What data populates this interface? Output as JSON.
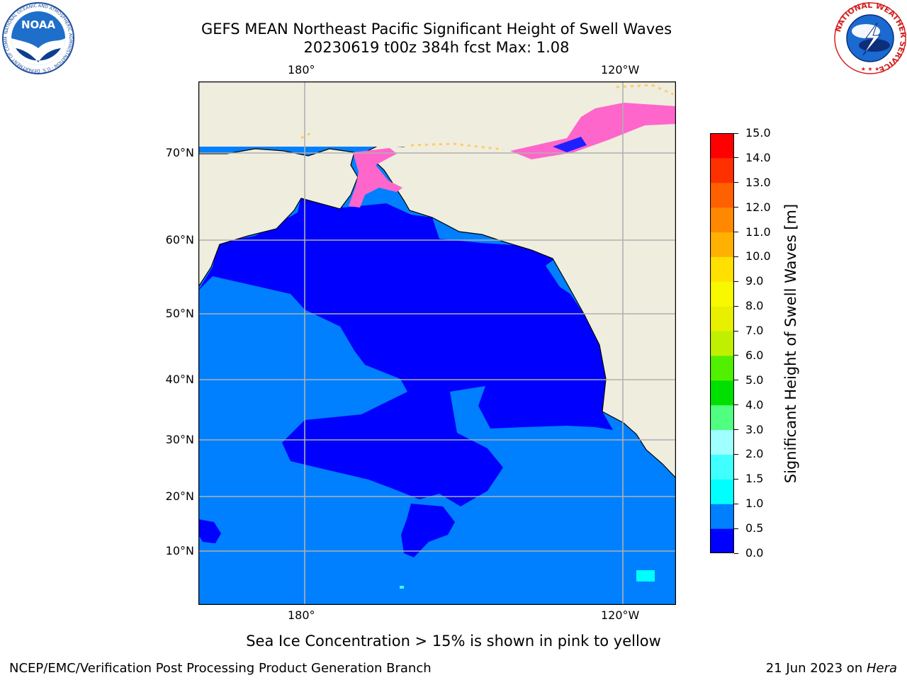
{
  "header": {
    "title_line1": "GEFS MEAN Northeast Pacific Significant Height of Swell Waves",
    "title_line2": "20230619 t00z 384h fcst   Max: 1.08"
  },
  "logos": {
    "noaa_text": "NOAA",
    "noaa_ring": "NATIONAL OCEANIC AND ATMOSPHERIC ADMINISTRATION · U.S. DEPARTMENT OF COMMERCE",
    "nws_ring": "NATIONAL WEATHER SERVICE"
  },
  "map": {
    "lon_labels": [
      "180°",
      "120°W"
    ],
    "lat_labels": [
      "70°N",
      "60°N",
      "50°N",
      "40°N",
      "30°N",
      "20°N",
      "10°N"
    ],
    "colors": {
      "land": "#efedde",
      "ocean_low": "#0000ff",
      "ocean_mid": "#0080ff",
      "grid": "#b0b0b0",
      "ice": "#ff66cc",
      "ice_edge": "#ffcc66"
    }
  },
  "colorbar": {
    "label": "Significant Height of Swell Waves [m]",
    "ticks": [
      "0.0",
      "0.5",
      "1.0",
      "1.5",
      "2.0",
      "3.0",
      "4.0",
      "5.0",
      "6.0",
      "7.0",
      "8.0",
      "9.0",
      "10.0",
      "11.0",
      "12.0",
      "13.0",
      "14.0",
      "15.0"
    ],
    "colors": [
      "#0000ff",
      "#0080ff",
      "#00ffff",
      "#40ffff",
      "#a0ffff",
      "#50ff80",
      "#00e000",
      "#50f000",
      "#c0f000",
      "#e8f000",
      "#f8f800",
      "#ffe000",
      "#ffb000",
      "#ff8800",
      "#ff6000",
      "#ff3000",
      "#ff0000"
    ]
  },
  "footer": {
    "note": "Sea Ice Concentration > 15% is shown in pink to yellow",
    "left": "NCEP/EMC/Verification Post Processing Product Generation Branch",
    "right_prefix": "21 Jun 2023 on ",
    "right_italic": "Hera"
  }
}
